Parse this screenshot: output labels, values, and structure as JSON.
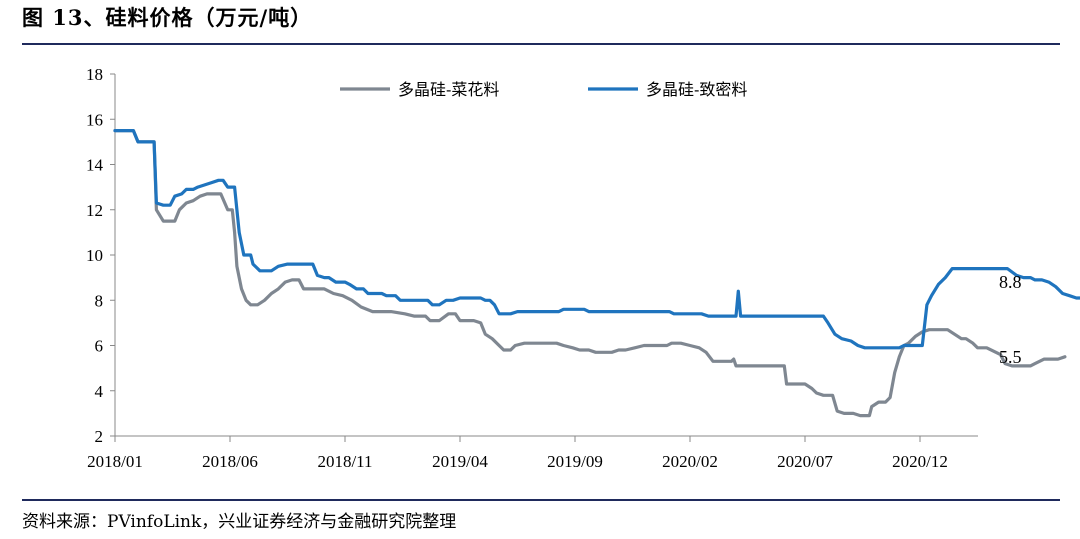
{
  "header": {
    "title": "图 13、硅料价格（万元/吨）"
  },
  "footer": {
    "source": "资料来源：PVinfoLink，兴业证券经济与金融研究院整理"
  },
  "chart_data": {
    "type": "line",
    "title": "",
    "xlabel": "",
    "ylabel": "",
    "ylim": [
      2,
      18
    ],
    "yticks": [
      2,
      4,
      6,
      8,
      10,
      12,
      14,
      16,
      18
    ],
    "xtick_labels": [
      "2018/01",
      "2018/06",
      "2018/11",
      "2019/04",
      "2019/09",
      "2020/02",
      "2020/07",
      "2020/12"
    ],
    "x_range_months": [
      0,
      37.3
    ],
    "grid": false,
    "legend_position": "top-center",
    "series": [
      {
        "name": "多晶硅-菜花料",
        "color": "#7f8791",
        "end_label": "5.5",
        "points": [
          [
            0.0,
            15.5
          ],
          [
            0.8,
            15.5
          ],
          [
            1.0,
            15.0
          ],
          [
            1.7,
            15.0
          ],
          [
            1.8,
            12.0
          ],
          [
            2.1,
            11.5
          ],
          [
            2.6,
            11.5
          ],
          [
            2.8,
            12.0
          ],
          [
            3.1,
            12.3
          ],
          [
            3.4,
            12.4
          ],
          [
            3.7,
            12.6
          ],
          [
            4.0,
            12.7
          ],
          [
            4.4,
            12.7
          ],
          [
            4.6,
            12.7
          ],
          [
            4.9,
            12.0
          ],
          [
            5.1,
            12.0
          ],
          [
            5.2,
            11.0
          ],
          [
            5.3,
            9.5
          ],
          [
            5.5,
            8.5
          ],
          [
            5.7,
            8.0
          ],
          [
            5.9,
            7.8
          ],
          [
            6.2,
            7.8
          ],
          [
            6.5,
            8.0
          ],
          [
            6.8,
            8.3
          ],
          [
            7.1,
            8.5
          ],
          [
            7.4,
            8.8
          ],
          [
            7.7,
            8.9
          ],
          [
            8.0,
            8.9
          ],
          [
            8.2,
            8.5
          ],
          [
            9.1,
            8.5
          ],
          [
            9.5,
            8.3
          ],
          [
            9.9,
            8.2
          ],
          [
            10.3,
            8.0
          ],
          [
            10.7,
            7.7
          ],
          [
            11.2,
            7.5
          ],
          [
            11.8,
            7.5
          ],
          [
            12.0,
            7.5
          ],
          [
            12.6,
            7.4
          ],
          [
            13.0,
            7.3
          ],
          [
            13.5,
            7.3
          ],
          [
            13.7,
            7.1
          ],
          [
            14.1,
            7.1
          ],
          [
            14.5,
            7.4
          ],
          [
            14.8,
            7.4
          ],
          [
            15.0,
            7.1
          ],
          [
            15.6,
            7.1
          ],
          [
            15.9,
            7.0
          ],
          [
            16.1,
            6.5
          ],
          [
            16.4,
            6.3
          ],
          [
            16.7,
            6.0
          ],
          [
            16.9,
            5.8
          ],
          [
            17.2,
            5.8
          ],
          [
            17.4,
            6.0
          ],
          [
            17.8,
            6.1
          ],
          [
            18.3,
            6.1
          ],
          [
            19.2,
            6.1
          ],
          [
            19.5,
            6.0
          ],
          [
            19.9,
            5.9
          ],
          [
            20.2,
            5.8
          ],
          [
            20.6,
            5.8
          ],
          [
            20.9,
            5.7
          ],
          [
            21.6,
            5.7
          ],
          [
            21.9,
            5.8
          ],
          [
            22.2,
            5.8
          ],
          [
            22.6,
            5.9
          ],
          [
            23.0,
            6.0
          ],
          [
            23.6,
            6.0
          ],
          [
            24.0,
            6.0
          ],
          [
            24.2,
            6.1
          ],
          [
            24.6,
            6.1
          ],
          [
            25.0,
            6.0
          ],
          [
            25.4,
            5.9
          ],
          [
            25.7,
            5.7
          ],
          [
            26.0,
            5.3
          ],
          [
            26.8,
            5.3
          ],
          [
            26.9,
            5.4
          ],
          [
            27.0,
            5.1
          ],
          [
            27.6,
            5.1
          ],
          [
            28.8,
            5.1
          ],
          [
            29.1,
            5.1
          ],
          [
            29.2,
            4.3
          ],
          [
            30.0,
            4.3
          ],
          [
            30.3,
            4.1
          ],
          [
            30.5,
            3.9
          ],
          [
            30.8,
            3.8
          ],
          [
            31.2,
            3.8
          ],
          [
            31.4,
            3.1
          ],
          [
            31.7,
            3.0
          ],
          [
            32.1,
            3.0
          ],
          [
            32.4,
            2.9
          ],
          [
            32.8,
            2.9
          ],
          [
            32.9,
            3.3
          ],
          [
            33.2,
            3.5
          ],
          [
            33.5,
            3.5
          ],
          [
            33.7,
            3.7
          ],
          [
            33.9,
            4.8
          ],
          [
            34.1,
            5.5
          ],
          [
            34.3,
            6.0
          ],
          [
            34.5,
            6.1
          ],
          [
            34.8,
            6.4
          ],
          [
            35.1,
            6.6
          ],
          [
            35.4,
            6.7
          ],
          [
            35.9,
            6.7
          ],
          [
            36.2,
            6.7
          ],
          [
            36.5,
            6.5
          ],
          [
            36.8,
            6.3
          ],
          [
            37.0,
            6.3
          ],
          [
            37.3,
            6.1
          ],
          [
            37.5,
            5.9
          ],
          [
            37.9,
            5.9
          ],
          [
            38.3,
            5.7
          ],
          [
            38.5,
            5.6
          ],
          [
            38.7,
            5.2
          ],
          [
            39.0,
            5.1
          ],
          [
            39.8,
            5.1
          ],
          [
            40.0,
            5.2
          ],
          [
            40.4,
            5.4
          ],
          [
            40.8,
            5.4
          ],
          [
            41.0,
            5.4
          ],
          [
            41.3,
            5.5
          ]
        ]
      },
      {
        "name": "多晶硅-致密料",
        "color": "#1f74be",
        "end_label": "8.8",
        "points": [
          [
            0.0,
            15.5
          ],
          [
            0.8,
            15.5
          ],
          [
            1.0,
            15.0
          ],
          [
            1.7,
            15.0
          ],
          [
            1.8,
            12.3
          ],
          [
            2.1,
            12.2
          ],
          [
            2.4,
            12.2
          ],
          [
            2.6,
            12.6
          ],
          [
            2.9,
            12.7
          ],
          [
            3.1,
            12.9
          ],
          [
            3.4,
            12.9
          ],
          [
            3.6,
            13.0
          ],
          [
            3.9,
            13.1
          ],
          [
            4.2,
            13.2
          ],
          [
            4.5,
            13.3
          ],
          [
            4.7,
            13.3
          ],
          [
            4.9,
            13.0
          ],
          [
            5.2,
            13.0
          ],
          [
            5.3,
            12.0
          ],
          [
            5.4,
            11.0
          ],
          [
            5.6,
            10.0
          ],
          [
            5.9,
            10.0
          ],
          [
            6.0,
            9.6
          ],
          [
            6.3,
            9.3
          ],
          [
            6.8,
            9.3
          ],
          [
            7.1,
            9.5
          ],
          [
            7.5,
            9.6
          ],
          [
            8.6,
            9.6
          ],
          [
            8.8,
            9.1
          ],
          [
            9.1,
            9.0
          ],
          [
            9.3,
            9.0
          ],
          [
            9.6,
            8.8
          ],
          [
            10.0,
            8.8
          ],
          [
            10.2,
            8.7
          ],
          [
            10.5,
            8.5
          ],
          [
            10.8,
            8.5
          ],
          [
            11.0,
            8.3
          ],
          [
            11.6,
            8.3
          ],
          [
            11.8,
            8.2
          ],
          [
            12.2,
            8.2
          ],
          [
            12.4,
            8.0
          ],
          [
            13.6,
            8.0
          ],
          [
            13.8,
            7.8
          ],
          [
            14.1,
            7.8
          ],
          [
            14.4,
            8.0
          ],
          [
            14.7,
            8.0
          ],
          [
            15.0,
            8.1
          ],
          [
            15.6,
            8.1
          ],
          [
            15.9,
            8.1
          ],
          [
            16.1,
            8.0
          ],
          [
            16.3,
            8.0
          ],
          [
            16.5,
            7.8
          ],
          [
            16.7,
            7.4
          ],
          [
            17.2,
            7.4
          ],
          [
            17.5,
            7.5
          ],
          [
            18.3,
            7.5
          ],
          [
            19.3,
            7.5
          ],
          [
            19.5,
            7.6
          ],
          [
            20.4,
            7.6
          ],
          [
            20.6,
            7.5
          ],
          [
            22.0,
            7.5
          ],
          [
            23.6,
            7.5
          ],
          [
            24.1,
            7.5
          ],
          [
            24.3,
            7.4
          ],
          [
            25.5,
            7.4
          ],
          [
            25.8,
            7.3
          ],
          [
            26.7,
            7.3
          ],
          [
            27.0,
            7.3
          ],
          [
            27.1,
            8.4
          ],
          [
            27.2,
            7.3
          ],
          [
            29.0,
            7.3
          ],
          [
            30.8,
            7.3
          ],
          [
            31.0,
            7.0
          ],
          [
            31.3,
            6.5
          ],
          [
            31.6,
            6.3
          ],
          [
            32.0,
            6.2
          ],
          [
            32.3,
            6.0
          ],
          [
            32.6,
            5.9
          ],
          [
            34.1,
            5.9
          ],
          [
            34.3,
            6.0
          ],
          [
            35.1,
            6.0
          ],
          [
            35.3,
            7.8
          ],
          [
            35.5,
            8.2
          ],
          [
            35.8,
            8.7
          ],
          [
            36.1,
            9.0
          ],
          [
            36.4,
            9.4
          ],
          [
            38.8,
            9.4
          ],
          [
            39.2,
            9.1
          ],
          [
            39.5,
            9.0
          ],
          [
            39.8,
            9.0
          ],
          [
            40.0,
            8.9
          ],
          [
            40.3,
            8.9
          ],
          [
            40.6,
            8.8
          ],
          [
            40.9,
            8.6
          ],
          [
            41.2,
            8.3
          ],
          [
            41.5,
            8.2
          ],
          [
            41.8,
            8.1
          ],
          [
            42.0,
            8.1
          ],
          [
            42.3,
            8.1
          ],
          [
            42.5,
            8.3
          ],
          [
            42.9,
            8.4
          ],
          [
            43.2,
            8.6
          ],
          [
            43.5,
            8.7
          ],
          [
            43.8,
            8.8
          ]
        ]
      }
    ]
  }
}
